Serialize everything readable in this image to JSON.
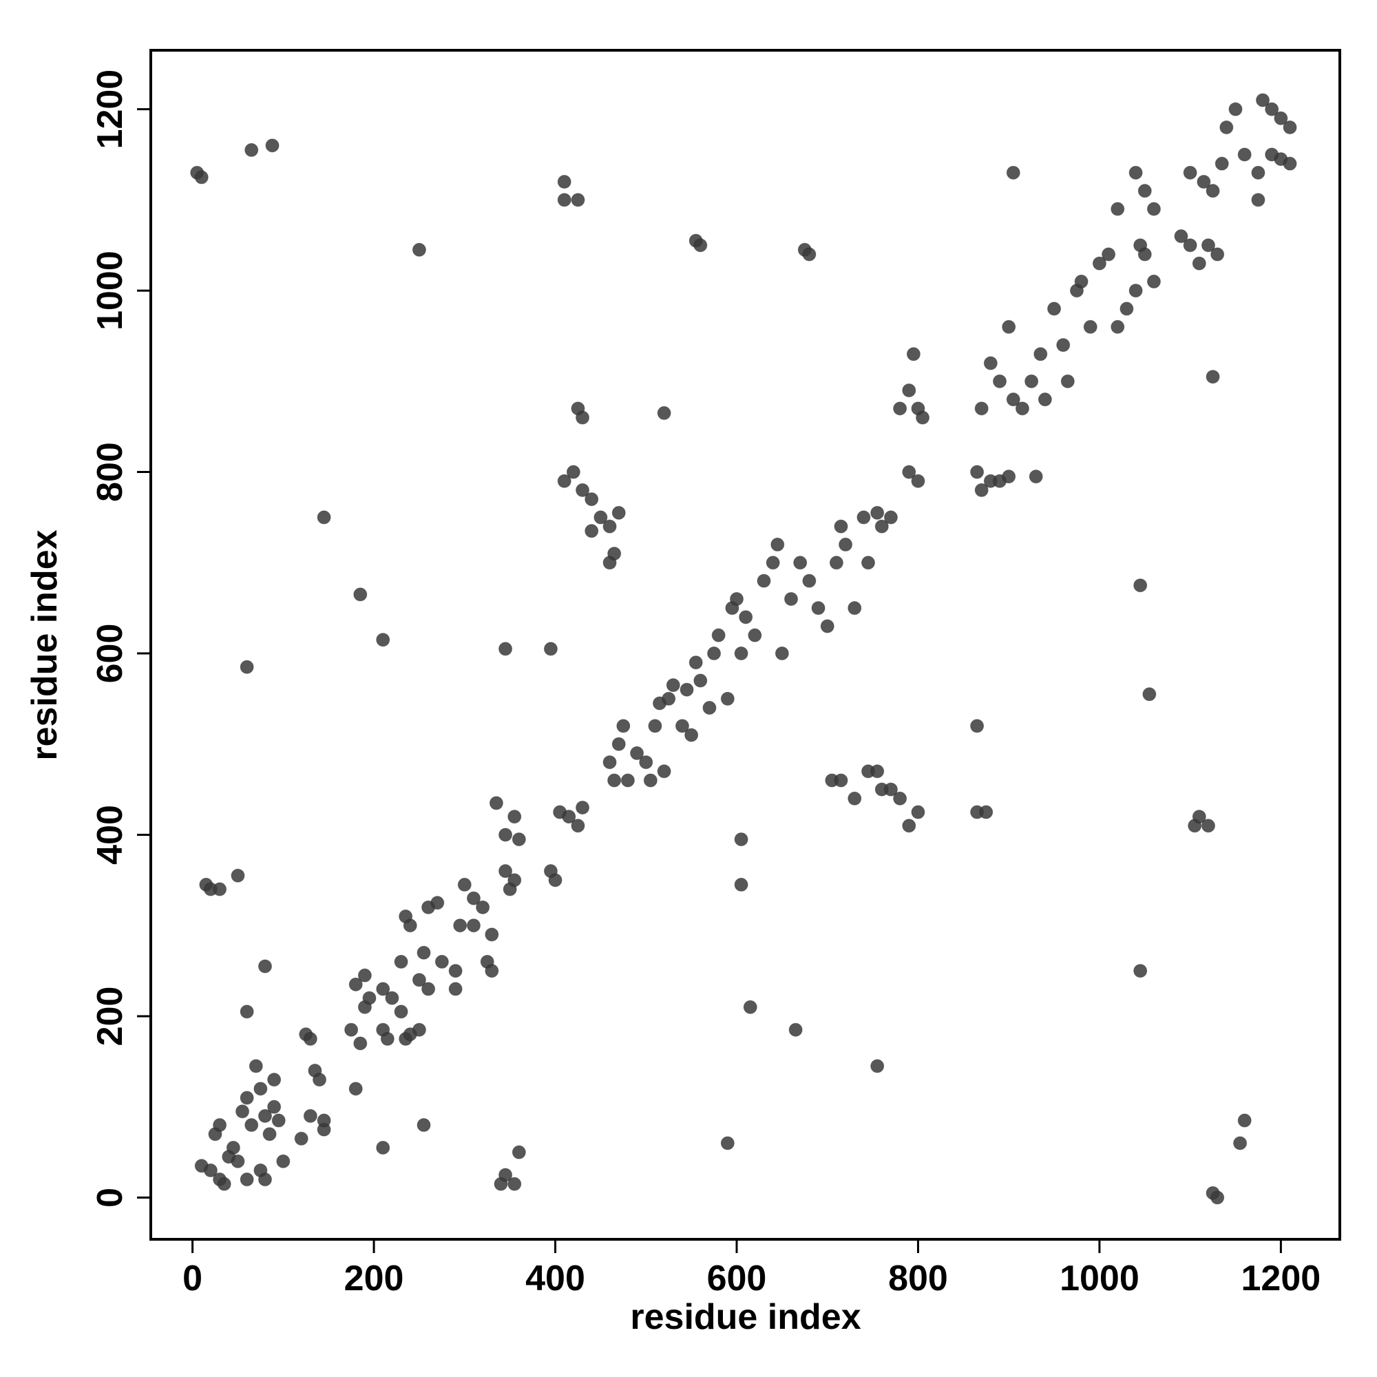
{
  "chart_data": {
    "type": "scatter",
    "xlabel": "residue index",
    "ylabel": "residue index",
    "xlim": [
      -46,
      1265
    ],
    "ylim": [
      -46,
      1265
    ],
    "xticks": [
      0,
      200,
      400,
      600,
      800,
      1000,
      1200
    ],
    "yticks": [
      0,
      200,
      400,
      600,
      800,
      1000,
      1200
    ],
    "color": "#3a3a3a",
    "x": [
      10,
      20,
      30,
      35,
      25,
      30,
      40,
      50,
      45,
      60,
      65,
      70,
      75,
      80,
      85,
      90,
      95,
      100,
      75,
      80,
      60,
      55,
      90,
      120,
      130,
      135,
      140,
      145,
      125,
      130,
      145,
      180,
      185,
      175,
      180,
      190,
      190,
      195,
      210,
      215,
      210,
      220,
      230,
      235,
      240,
      250,
      230,
      240,
      235,
      250,
      255,
      260,
      260,
      270,
      275,
      290,
      290,
      295,
      300,
      310,
      310,
      320,
      325,
      330,
      330,
      335,
      345,
      350,
      355,
      345,
      355,
      360,
      395,
      400,
      405,
      415,
      425,
      430,
      460,
      470,
      465,
      475,
      480,
      490,
      500,
      505,
      510,
      515,
      520,
      525,
      530,
      540,
      545,
      550,
      555,
      560,
      570,
      575,
      580,
      590,
      595,
      600,
      605,
      610,
      620,
      630,
      640,
      645,
      650,
      660,
      670,
      680,
      690,
      700,
      710,
      715,
      720,
      730,
      740,
      745,
      755,
      760,
      770,
      790,
      800,
      780,
      790,
      800,
      805,
      795,
      865,
      870,
      880,
      890,
      900,
      930,
      870,
      880,
      890,
      900,
      905,
      915,
      925,
      935,
      940,
      950,
      960,
      965,
      975,
      980,
      990,
      1000,
      1010,
      1020,
      1030,
      1040,
      1045,
      1050,
      1060,
      1020,
      1050,
      1040,
      1060,
      1090,
      1100,
      1110,
      1120,
      1130,
      1100,
      1115,
      1125,
      1135,
      1140,
      1150,
      1160,
      1175,
      1180,
      1190,
      1200,
      1210,
      1200,
      1210,
      1190,
      1175,
      5,
      10,
      65,
      88,
      250,
      410,
      410,
      425,
      555,
      560,
      675,
      680,
      905,
      1125,
      520,
      425,
      430,
      410,
      420,
      430,
      440,
      450,
      460,
      470,
      440,
      460,
      465,
      145,
      185,
      210,
      60,
      345,
      395,
      15,
      20,
      30,
      50,
      80,
      60,
      210,
      255,
      340,
      345,
      355,
      360,
      590,
      605,
      605,
      615,
      665,
      755,
      705,
      715,
      730,
      745,
      755,
      760,
      770,
      780,
      790,
      800,
      865,
      865,
      875,
      1045,
      1055,
      1045,
      1105,
      1110,
      1120,
      1125,
      1130,
      1155,
      1160
    ],
    "values": [
      35,
      30,
      20,
      15,
      70,
      80,
      45,
      40,
      55,
      20,
      80,
      145,
      120,
      90,
      70,
      100,
      85,
      40,
      30,
      20,
      110,
      95,
      130,
      65,
      90,
      140,
      130,
      75,
      180,
      175,
      85,
      120,
      170,
      185,
      235,
      245,
      210,
      220,
      185,
      175,
      230,
      220,
      205,
      175,
      180,
      185,
      260,
      300,
      310,
      240,
      270,
      230,
      320,
      325,
      260,
      230,
      250,
      300,
      345,
      330,
      300,
      320,
      260,
      250,
      290,
      435,
      360,
      340,
      350,
      400,
      420,
      395,
      360,
      350,
      425,
      420,
      410,
      430,
      480,
      500,
      460,
      520,
      460,
      490,
      480,
      460,
      520,
      545,
      470,
      550,
      565,
      520,
      560,
      510,
      590,
      570,
      540,
      600,
      620,
      550,
      650,
      660,
      600,
      640,
      620,
      680,
      700,
      720,
      600,
      660,
      700,
      680,
      650,
      630,
      700,
      740,
      720,
      650,
      750,
      700,
      755,
      740,
      750,
      800,
      790,
      870,
      890,
      870,
      860,
      930,
      800,
      780,
      790,
      790,
      795,
      795,
      870,
      920,
      900,
      960,
      880,
      870,
      900,
      930,
      880,
      980,
      940,
      900,
      1000,
      1010,
      960,
      1030,
      1040,
      960,
      980,
      1000,
      1050,
      1040,
      1010,
      1090,
      1110,
      1130,
      1090,
      1060,
      1050,
      1030,
      1050,
      1040,
      1130,
      1120,
      1110,
      1140,
      1180,
      1200,
      1150,
      1100,
      1210,
      1200,
      1190,
      1180,
      1145,
      1140,
      1150,
      1130,
      1130,
      1125,
      1155,
      1160,
      1045,
      1120,
      1100,
      1100,
      1055,
      1050,
      1045,
      1040,
      1130,
      905,
      865,
      870,
      860,
      790,
      800,
      780,
      770,
      750,
      740,
      755,
      735,
      700,
      710,
      750,
      665,
      615,
      585,
      605,
      605,
      345,
      340,
      340,
      355,
      255,
      205,
      55,
      80,
      15,
      25,
      15,
      50,
      60,
      395,
      345,
      210,
      185,
      145,
      460,
      460,
      440,
      470,
      470,
      450,
      450,
      440,
      410,
      425,
      520,
      425,
      425,
      675,
      555,
      250,
      410,
      420,
      410,
      5,
      0,
      60,
      85
    ]
  }
}
